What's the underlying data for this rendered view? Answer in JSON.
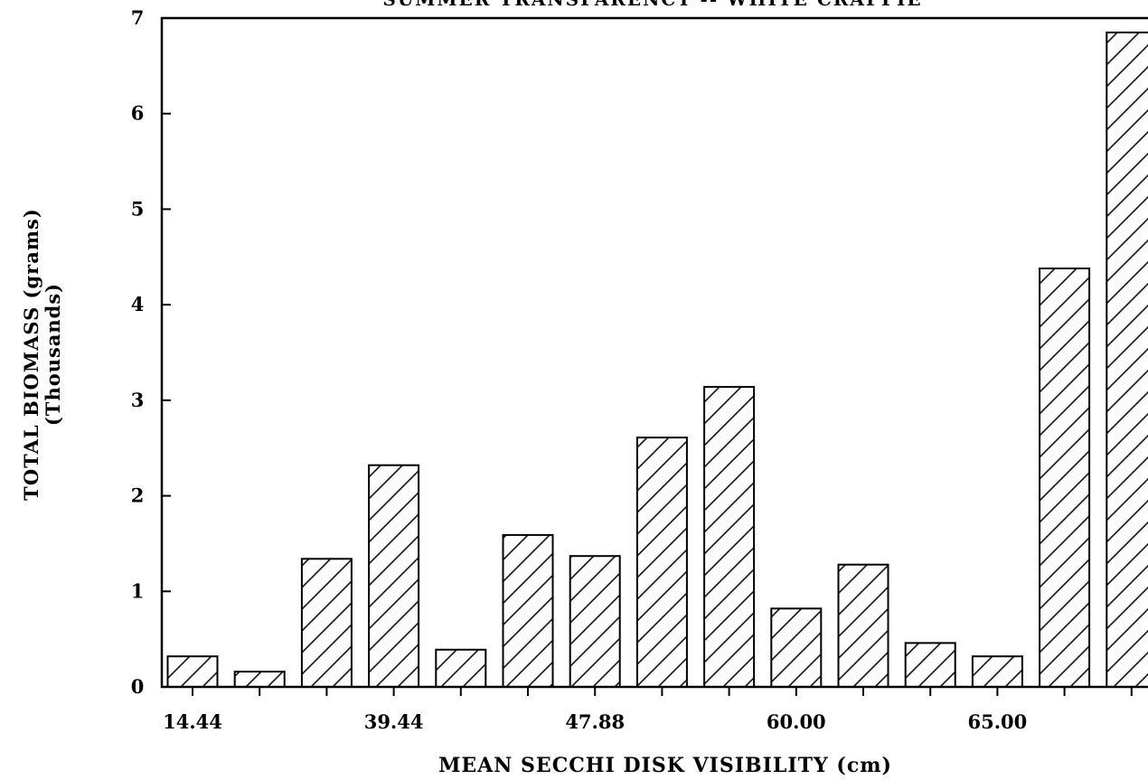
{
  "chart_data": {
    "type": "bar",
    "title": "SUMMER TRANSPARENCY -- WHITE CRAPPIE",
    "xlabel": "MEAN SECCHI DISK VISIBILITY (cm)",
    "ylabel_line1": "TOTAL BIOMASS (grams)",
    "ylabel_line2": "(Thousands)",
    "ylim": [
      0,
      7
    ],
    "yticks": [
      "0",
      "1",
      "2",
      "3",
      "4",
      "5",
      "6",
      "7"
    ],
    "x_tick_labels": [
      {
        "label": "14.44",
        "bar_index": 0
      },
      {
        "label": "39.44",
        "bar_index": 3
      },
      {
        "label": "47.88",
        "bar_index": 6
      },
      {
        "label": "60.00",
        "bar_index": 9
      },
      {
        "label": "65.00",
        "bar_index": 12
      }
    ],
    "values": [
      0.32,
      0.16,
      1.34,
      2.32,
      0.39,
      1.59,
      1.37,
      2.61,
      3.14,
      0.82,
      1.28,
      0.46,
      0.32,
      4.38,
      6.85
    ],
    "fill_pattern": "diagonal-hatch",
    "grid": false
  }
}
